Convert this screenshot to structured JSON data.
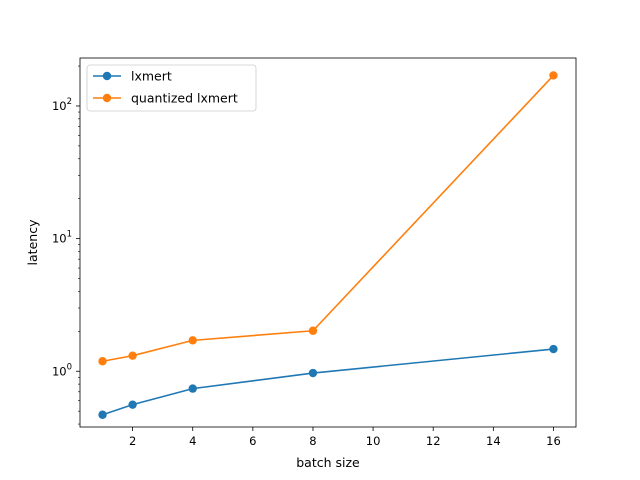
{
  "chart_data": {
    "type": "line",
    "title": "",
    "xlabel": "batch size",
    "ylabel": "latency",
    "yscale": "log",
    "xlim": [
      0.25,
      16.75
    ],
    "ylim": [
      0.38,
      230
    ],
    "grid": false,
    "legend_position": "top-left",
    "x_ticks": [
      2,
      4,
      6,
      8,
      10,
      12,
      14,
      16
    ],
    "y_ticks": [
      {
        "value": 1,
        "base": "10",
        "exp": "0"
      },
      {
        "value": 10,
        "base": "10",
        "exp": "1"
      },
      {
        "value": 100,
        "base": "10",
        "exp": "2"
      }
    ],
    "x": [
      1,
      2,
      4,
      8,
      16
    ],
    "series": [
      {
        "name": "lxmert",
        "color": "#1f77b4",
        "values": [
          0.47,
          0.56,
          0.74,
          0.97,
          1.47
        ]
      },
      {
        "name": "quantized lxmert",
        "color": "#ff7f0e",
        "values": [
          1.19,
          1.31,
          1.71,
          2.02,
          170
        ]
      }
    ]
  }
}
